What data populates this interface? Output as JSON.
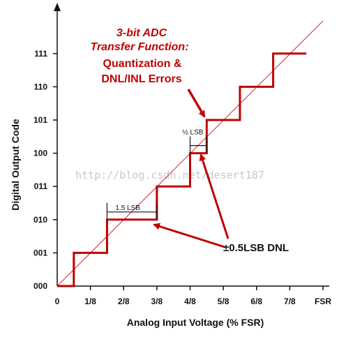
{
  "chart_data": {
    "type": "line",
    "title_lines": [
      {
        "text": "3-bit ADC",
        "italic": true
      },
      {
        "text": "Transfer Function:",
        "italic": true
      },
      {
        "text": "Quantization &",
        "italic": false
      },
      {
        "text": "DNL/INL Errors",
        "italic": false
      }
    ],
    "xlabel": "Analog Input Voltage (% FSR)",
    "ylabel": "Digital Output Code",
    "x_ticks": [
      {
        "value": 0,
        "label": "0"
      },
      {
        "value": 0.125,
        "label": "1/8"
      },
      {
        "value": 0.25,
        "label": "2/8"
      },
      {
        "value": 0.375,
        "label": "3/8"
      },
      {
        "value": 0.5,
        "label": "4/8"
      },
      {
        "value": 0.625,
        "label": "5/8"
      },
      {
        "value": 0.75,
        "label": "6/8"
      },
      {
        "value": 0.875,
        "label": "7/8"
      },
      {
        "value": 1.0,
        "label": "FSR"
      }
    ],
    "y_ticks": [
      "000",
      "001",
      "010",
      "011",
      "100",
      "101",
      "110",
      "111"
    ],
    "xlim": [
      0,
      1.0
    ],
    "ylim": [
      0,
      7.7
    ],
    "grid": false,
    "series": [
      {
        "kind": "ideal",
        "color": "#e02020",
        "points": [
          [
            0,
            0
          ],
          [
            1.0,
            8
          ]
        ]
      },
      {
        "kind": "transfer",
        "color": "#c00000",
        "points": [
          [
            0,
            0
          ],
          [
            0.0625,
            0
          ],
          [
            0.0625,
            1
          ],
          [
            0.1875,
            1
          ],
          [
            0.1875,
            2
          ],
          [
            0.375,
            2
          ],
          [
            0.375,
            3
          ],
          [
            0.5,
            3
          ],
          [
            0.5,
            4
          ],
          [
            0.5625,
            4
          ],
          [
            0.5625,
            5
          ],
          [
            0.6875,
            5
          ],
          [
            0.6875,
            6
          ],
          [
            0.8125,
            6
          ],
          [
            0.8125,
            7
          ],
          [
            0.9375,
            7
          ]
        ]
      }
    ],
    "annotations": {
      "lsb_15": {
        "label": "1.5 LSB",
        "x0": 0.1875,
        "x1": 0.375,
        "code": 2
      },
      "lsb_half": {
        "label": "½ LSB",
        "x0": 0.5,
        "x1": 0.5625,
        "code": 4
      },
      "dnl": {
        "label": "±0.5LSB DNL"
      }
    },
    "watermark": "http://blog.csdn.net/desert187",
    "colors": {
      "axis": "#111111",
      "accent": "#c00000",
      "ideal_line": "#e02020",
      "watermark": "#c8c8c8"
    }
  }
}
